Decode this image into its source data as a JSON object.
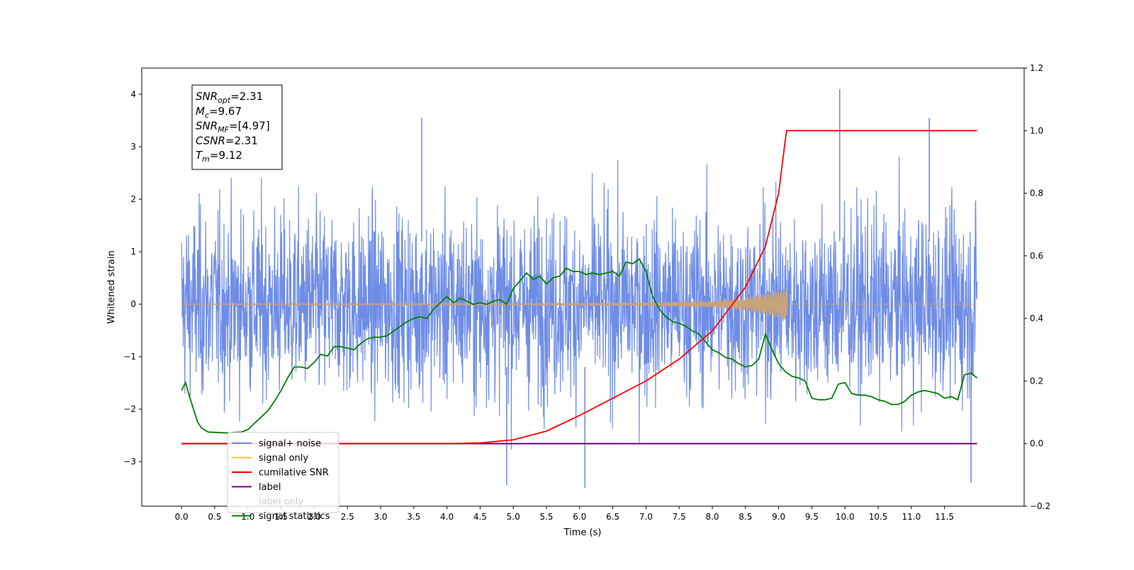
{
  "chart_data": {
    "type": "line",
    "xlabel": "Time (s)",
    "ylabel": "Whitened strain",
    "title": "",
    "xlim": [
      -0.6,
      12.7
    ],
    "ylim": [
      -3.85,
      4.5
    ],
    "y2lim": [
      -0.2,
      1.2
    ],
    "grid": false,
    "legend_position": "lower-left",
    "x_ticks": [
      0.0,
      0.5,
      1.0,
      1.5,
      2.0,
      2.5,
      3.0,
      3.5,
      4.0,
      4.5,
      5.0,
      5.5,
      6.0,
      6.5,
      7.0,
      7.5,
      8.0,
      8.5,
      9.0,
      9.5,
      10.0,
      10.5,
      11.0,
      11.5
    ],
    "x_tick_labels": [
      "0.0",
      "0.5",
      "1.0",
      "1.5",
      "2.0",
      "2.5",
      "3.0",
      "3.5",
      "4.0",
      "4.5",
      "5.0",
      "5.5",
      "6.0",
      "6.5",
      "7.0",
      "7.5",
      "8.0",
      "8.5",
      "9.0",
      "9.5",
      "10.0",
      "10.5",
      "11.0",
      "11.5"
    ],
    "y_ticks": [
      -3,
      -2,
      -1,
      0,
      1,
      2,
      3,
      4
    ],
    "y_tick_labels": [
      "−3",
      "−2",
      "−1",
      "0",
      "1",
      "2",
      "3",
      "4"
    ],
    "y2_ticks": [
      -0.2,
      0.0,
      0.2,
      0.4,
      0.6,
      0.8,
      1.0,
      1.2
    ],
    "y2_tick_labels": [
      "−0.2",
      "0.0",
      "0.2",
      "0.4",
      "0.6",
      "0.8",
      "1.0",
      "1.2"
    ],
    "annotation": [
      {
        "sym": "SNR",
        "sub": "opt",
        "value": "=2.31"
      },
      {
        "sym": "M",
        "sub": "c",
        "value": "=9.67"
      },
      {
        "sym": "SNR",
        "sub": "MF",
        "value": "=[4.97]"
      },
      {
        "sym": "CSNR",
        "sub": "",
        "value": "=2.31"
      },
      {
        "sym": "T",
        "sub": "m",
        "value": "=9.12"
      }
    ],
    "series": [
      {
        "name": "signal+ noise",
        "color": "#6f8de6",
        "axis": "left",
        "x_range": [
          0.0,
          11.99
        ],
        "approx_range": [
          -3.5,
          4.1
        ],
        "peaks": [
          [
            9.92,
            4.1
          ],
          [
            11.27,
            3.55
          ],
          [
            3.62,
            3.55
          ],
          [
            6.08,
            -3.5
          ],
          [
            4.9,
            -3.45
          ],
          [
            11.9,
            -3.4
          ]
        ]
      },
      {
        "name": "signal only",
        "color": "#ffbf40",
        "axis": "left",
        "x": [
          0.0,
          4.0,
          6.0,
          7.0,
          8.0,
          8.5,
          9.0,
          9.12,
          9.13,
          11.99
        ],
        "envelope": [
          0.005,
          0.01,
          0.02,
          0.03,
          0.06,
          0.12,
          0.26,
          0.32,
          0.0,
          0.0
        ]
      },
      {
        "name": "cumilative SNR",
        "color": "#ff0000",
        "axis": "right",
        "x": [
          0.0,
          4.0,
          4.5,
          5.0,
          5.5,
          6.0,
          6.5,
          7.0,
          7.5,
          8.0,
          8.5,
          8.8,
          9.0,
          9.1,
          9.12,
          11.99
        ],
        "y": [
          0.0,
          0.0,
          0.002,
          0.012,
          0.04,
          0.09,
          0.145,
          0.2,
          0.27,
          0.36,
          0.5,
          0.63,
          0.8,
          0.97,
          1.0,
          1.0
        ]
      },
      {
        "name": "label",
        "color": "#7b007b",
        "axis": "right",
        "x": [
          0.0,
          11.99
        ],
        "y": [
          0.0,
          0.0
        ]
      },
      {
        "name": "label only",
        "color": "#00ffff",
        "axis": "right",
        "x": [],
        "y": []
      },
      {
        "name": "signal statistics",
        "color": "#007f00",
        "axis": "right",
        "x": [
          0.0,
          0.06,
          0.12,
          0.18,
          0.24,
          0.3,
          0.4,
          0.5,
          0.6,
          0.7,
          0.8,
          0.9,
          1.0,
          1.1,
          1.2,
          1.3,
          1.4,
          1.5,
          1.6,
          1.7,
          1.8,
          1.9,
          2.0,
          2.1,
          2.2,
          2.3,
          2.4,
          2.5,
          2.6,
          2.7,
          2.8,
          2.9,
          3.0,
          3.1,
          3.2,
          3.3,
          3.4,
          3.5,
          3.6,
          3.7,
          3.8,
          3.9,
          4.0,
          4.1,
          4.2,
          4.3,
          4.4,
          4.5,
          4.6,
          4.7,
          4.8,
          4.9,
          5.0,
          5.1,
          5.2,
          5.3,
          5.4,
          5.5,
          5.6,
          5.7,
          5.8,
          5.9,
          6.0,
          6.1,
          6.2,
          6.3,
          6.4,
          6.5,
          6.6,
          6.7,
          6.8,
          6.9,
          7.0,
          7.1,
          7.2,
          7.3,
          7.4,
          7.5,
          7.6,
          7.7,
          7.8,
          7.9,
          8.0,
          8.1,
          8.2,
          8.3,
          8.4,
          8.5,
          8.6,
          8.7,
          8.8,
          8.9,
          9.0,
          9.1,
          9.2,
          9.3,
          9.4,
          9.5,
          9.6,
          9.7,
          9.8,
          9.9,
          10.0,
          10.1,
          10.2,
          10.3,
          10.4,
          10.5,
          10.6,
          10.7,
          10.8,
          10.9,
          11.0,
          11.1,
          11.2,
          11.3,
          11.4,
          11.5,
          11.6,
          11.7,
          11.8,
          11.9,
          11.99
        ],
        "y": [
          0.17,
          0.195,
          0.15,
          0.11,
          0.07,
          0.05,
          0.037,
          0.036,
          0.035,
          0.034,
          0.036,
          0.037,
          0.045,
          0.065,
          0.085,
          0.105,
          0.135,
          0.17,
          0.21,
          0.245,
          0.245,
          0.24,
          0.26,
          0.285,
          0.28,
          0.31,
          0.31,
          0.305,
          0.3,
          0.32,
          0.335,
          0.34,
          0.34,
          0.345,
          0.36,
          0.375,
          0.39,
          0.4,
          0.405,
          0.4,
          0.43,
          0.45,
          0.47,
          0.45,
          0.465,
          0.455,
          0.445,
          0.45,
          0.445,
          0.455,
          0.46,
          0.445,
          0.495,
          0.52,
          0.545,
          0.525,
          0.535,
          0.51,
          0.53,
          0.535,
          0.56,
          0.55,
          0.55,
          0.54,
          0.545,
          0.54,
          0.545,
          0.55,
          0.535,
          0.58,
          0.575,
          0.59,
          0.55,
          0.47,
          0.43,
          0.405,
          0.39,
          0.385,
          0.375,
          0.36,
          0.35,
          0.325,
          0.3,
          0.29,
          0.275,
          0.27,
          0.255,
          0.245,
          0.25,
          0.27,
          0.35,
          0.3,
          0.255,
          0.23,
          0.215,
          0.21,
          0.2,
          0.145,
          0.14,
          0.14,
          0.145,
          0.19,
          0.195,
          0.16,
          0.155,
          0.155,
          0.15,
          0.14,
          0.135,
          0.125,
          0.125,
          0.135,
          0.155,
          0.165,
          0.17,
          0.165,
          0.16,
          0.145,
          0.15,
          0.14,
          0.22,
          0.225,
          0.21
        ]
      }
    ]
  }
}
